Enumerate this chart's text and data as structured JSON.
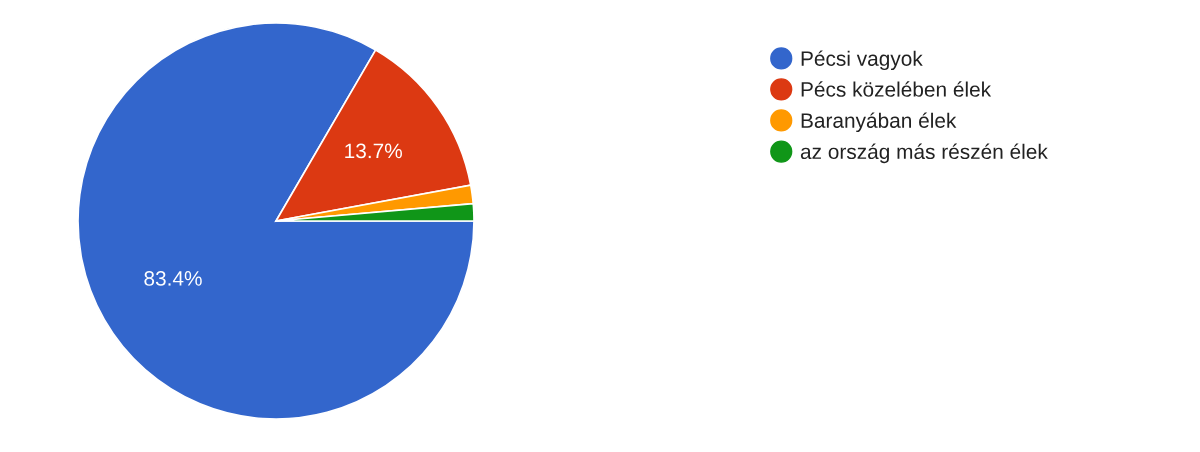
{
  "chart_data": {
    "type": "pie",
    "categories": [
      "Pécsi vagyok",
      "Pécs közelében élek",
      "Baranyában élek",
      "az ország más részén élek"
    ],
    "values": [
      83.4,
      13.7,
      1.5,
      1.4
    ],
    "colors": [
      "#3366cc",
      "#dc3912",
      "#ff9900",
      "#109618"
    ],
    "value_labels": [
      "83.4%",
      "13.7%",
      null,
      null
    ],
    "legend": "right"
  }
}
